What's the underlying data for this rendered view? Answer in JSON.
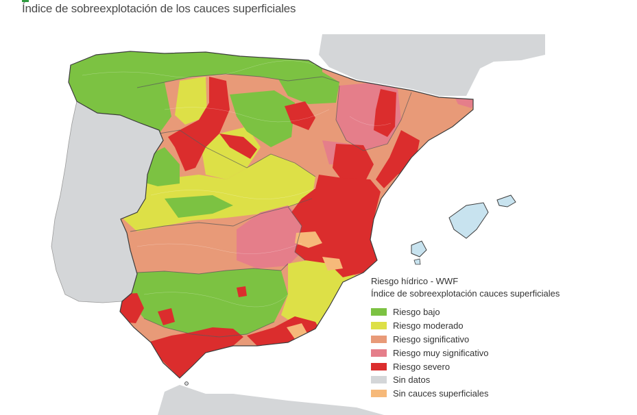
{
  "title": "Índice de sobreexplotación de los cauces superficiales",
  "legend": {
    "title1": "Riesgo hídrico - WWF",
    "title2": "Índice de sobreexplotación cauces superficiales",
    "items": [
      {
        "label": "Riesgo bajo",
        "color": "#7cc242"
      },
      {
        "label": "Riesgo moderado",
        "color": "#dde047"
      },
      {
        "label": "Riesgo significativo",
        "color": "#e89a78"
      },
      {
        "label": "Riesgo muy significativo",
        "color": "#e57e8a"
      },
      {
        "label": "Riesgo severo",
        "color": "#db2d2d"
      },
      {
        "label": "Sin datos",
        "color": "#d4d6d8"
      },
      {
        "label": "Sin cauces superficiales",
        "color": "#f6b97a"
      }
    ]
  },
  "map": {
    "land_color": "#d4d6d8",
    "border_color": "#4a4a4a",
    "regions": [
      "iberian-peninsula",
      "portugal",
      "france-coast",
      "africa-coast",
      "balearic-islands"
    ]
  }
}
